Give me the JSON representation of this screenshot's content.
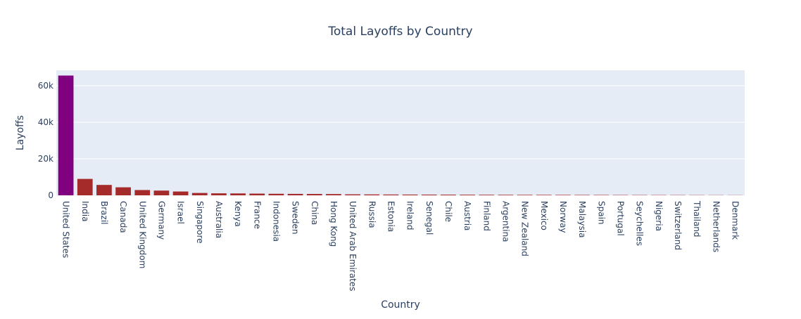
{
  "chart_data": {
    "type": "bar",
    "title": "Total Layoffs by Country",
    "xlabel": "Country",
    "ylabel": "Layoffs",
    "ylim": [
      0,
      68500
    ],
    "yticks": [
      0,
      20000,
      40000,
      60000
    ],
    "ytick_labels": [
      "0",
      "20k",
      "40k",
      "60k"
    ],
    "grid": true,
    "categories": [
      "United States",
      "India",
      "Brazil",
      "Canada",
      "United Kingdom",
      "Germany",
      "Israel",
      "Singapore",
      "Australia",
      "Kenya",
      "France",
      "Indonesia",
      "Sweden",
      "China",
      "Hong Kong",
      "United Arab Emirates",
      "Russia",
      "Estonia",
      "Ireland",
      "Senegal",
      "Chile",
      "Austria",
      "Finland",
      "Argentina",
      "New Zealand",
      "Mexico",
      "Norway",
      "Malaysia",
      "Spain",
      "Portugal",
      "Seychelles",
      "Nigeria",
      "Switzerland",
      "Thailand",
      "Netherlands",
      "Denmark"
    ],
    "values": [
      65600,
      9000,
      5700,
      4400,
      2900,
      2600,
      2100,
      1300,
      1100,
      1050,
      950,
      850,
      800,
      750,
      700,
      550,
      500,
      450,
      420,
      400,
      380,
      350,
      320,
      300,
      280,
      260,
      240,
      220,
      200,
      180,
      160,
      150,
      140,
      120,
      100,
      80
    ],
    "colors": {
      "top": "#800080",
      "rest": "#a52a2a",
      "plot_bg": "#e5ecf6",
      "grid": "#ffffff",
      "text": "#2a3f5f"
    }
  }
}
